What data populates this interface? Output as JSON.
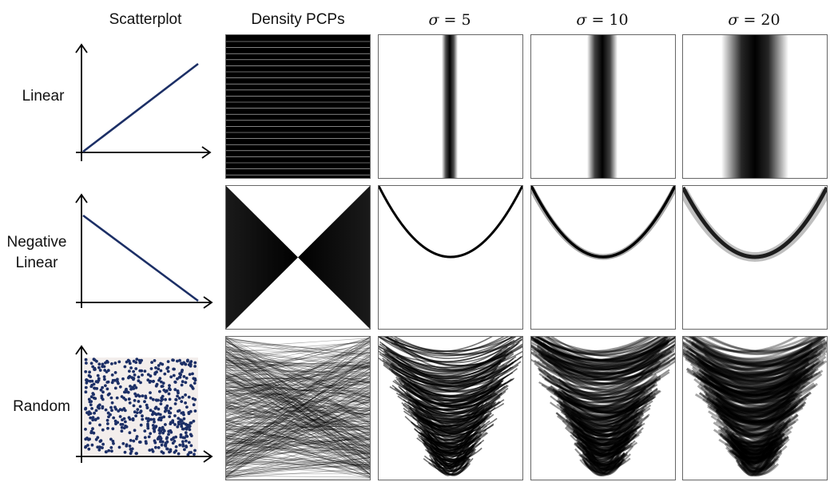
{
  "headers": {
    "scatterplot": "Scatterplot",
    "density": "Density PCPs",
    "sigma_symbol": "σ",
    "sigma_values": [
      "= 5",
      "= 10",
      "= 20"
    ]
  },
  "rows": [
    {
      "label_lines": [
        "Linear"
      ]
    },
    {
      "label_lines": [
        "Negative",
        "Linear"
      ]
    },
    {
      "label_lines": [
        "Random"
      ]
    }
  ],
  "colors": {
    "point": "#1c2f66",
    "line": "#1c2f66",
    "ink": "#000000",
    "scatter_bg": "#f3eeec"
  }
}
